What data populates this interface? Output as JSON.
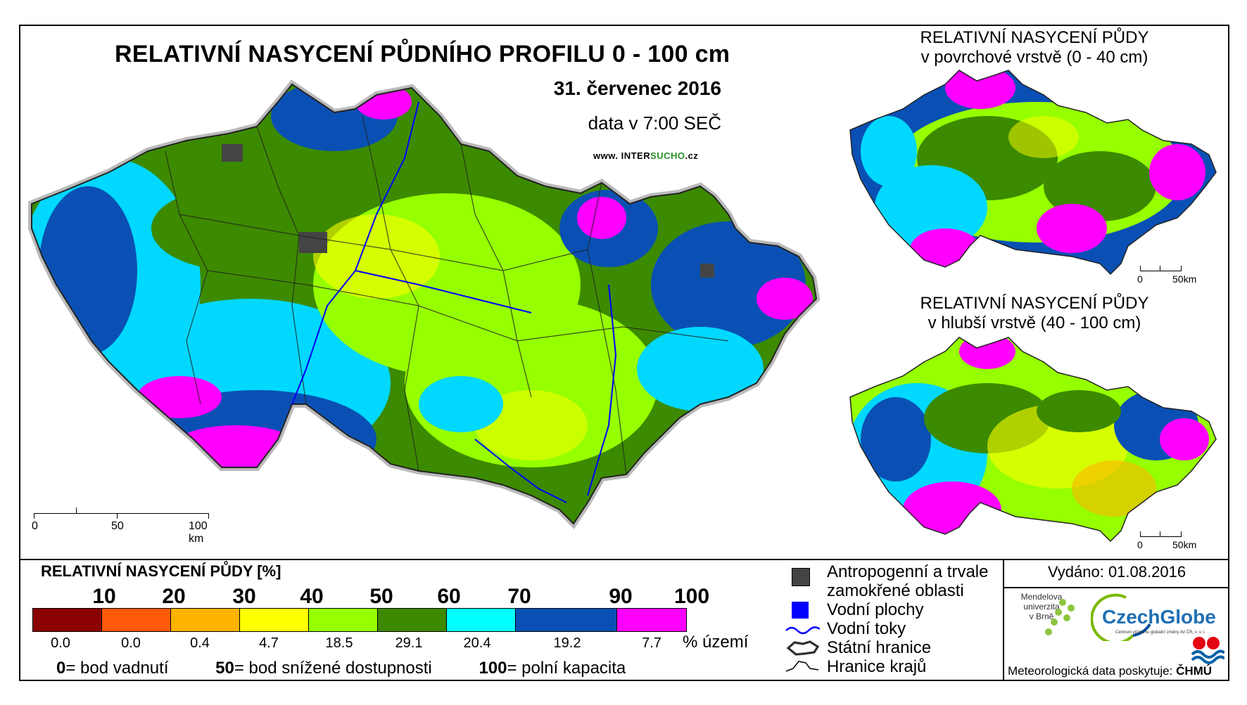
{
  "header": {
    "title": "RELATIVNÍ NASYCENÍ PŮDNÍHO PROFILU 0 - 100 cm",
    "date": "31. červenec 2016",
    "time": "data v 7:00 SEČ",
    "website_prefix": "www.",
    "website_inter": "INTER",
    "website_sucho": "SUCHO",
    "website_suffix": ".cz"
  },
  "inset_top": {
    "title_line1": "RELATIVNÍ NASYCENÍ PŮDY",
    "title_line2": "v povrchové vrstvě (0 - 40 cm)",
    "scale_0": "0",
    "scale_50": "50km"
  },
  "inset_bottom": {
    "title_line1": "RELATIVNÍ NASYCENÍ PŮDY",
    "title_line2": "v hlubší vrstvě (40 - 100 cm)",
    "scale_0": "0",
    "scale_50": "50km"
  },
  "main_scale": {
    "s0": "0",
    "s50": "50",
    "s100": "100 km"
  },
  "legend": {
    "title": "RELATIVNÍ NASYCENÍ PŮDY [%]",
    "thresholds": [
      "10",
      "20",
      "30",
      "40",
      "50",
      "60",
      "70",
      "90",
      "100"
    ],
    "classes": [
      {
        "color": "#8b0000",
        "pct": "0.0"
      },
      {
        "color": "#ff5a0a",
        "pct": "0.0"
      },
      {
        "color": "#ffb400",
        "pct": "0.4"
      },
      {
        "color": "#ffff00",
        "pct": "4.7"
      },
      {
        "color": "#96ff00",
        "pct": "18.5"
      },
      {
        "color": "#3c8a00",
        "pct": "29.1"
      },
      {
        "color": "#00ffff",
        "pct": "20.4"
      },
      {
        "color": "#0a50b4",
        "pct": "19.2"
      },
      {
        "color": "#ff00ff",
        "pct": "7.7"
      }
    ],
    "unit": "% území",
    "note0_val": "0",
    "note0_text": "= bod vadnutí",
    "note50_val": "50",
    "note50_text": "= bod snížené dostupnosti",
    "note100_val": "100",
    "note100_text": "= polní kapacita"
  },
  "symbols": {
    "anthropogenic_line1": "Antropogenní a trvale",
    "anthropogenic_line2": "zamokřené oblasti",
    "water_bodies": "Vodní plochy",
    "rivers": "Vodní toky",
    "state_border": "Státní hranice",
    "region_border": "Hranice krajů"
  },
  "footer": {
    "issued": "Vydáno: 01.08.2016",
    "mendel_line1": "Mendelova",
    "mendel_line2": "univerzita",
    "mendel_line3": "v Brně",
    "czechglobe": "CzechGlobe",
    "czechglobe_sub": "Centrum výzkumu globální změny AV ČR, v. v. i.",
    "meteo": "Meteorologická data poskytuje:",
    "chmu": "ČHMÚ"
  }
}
